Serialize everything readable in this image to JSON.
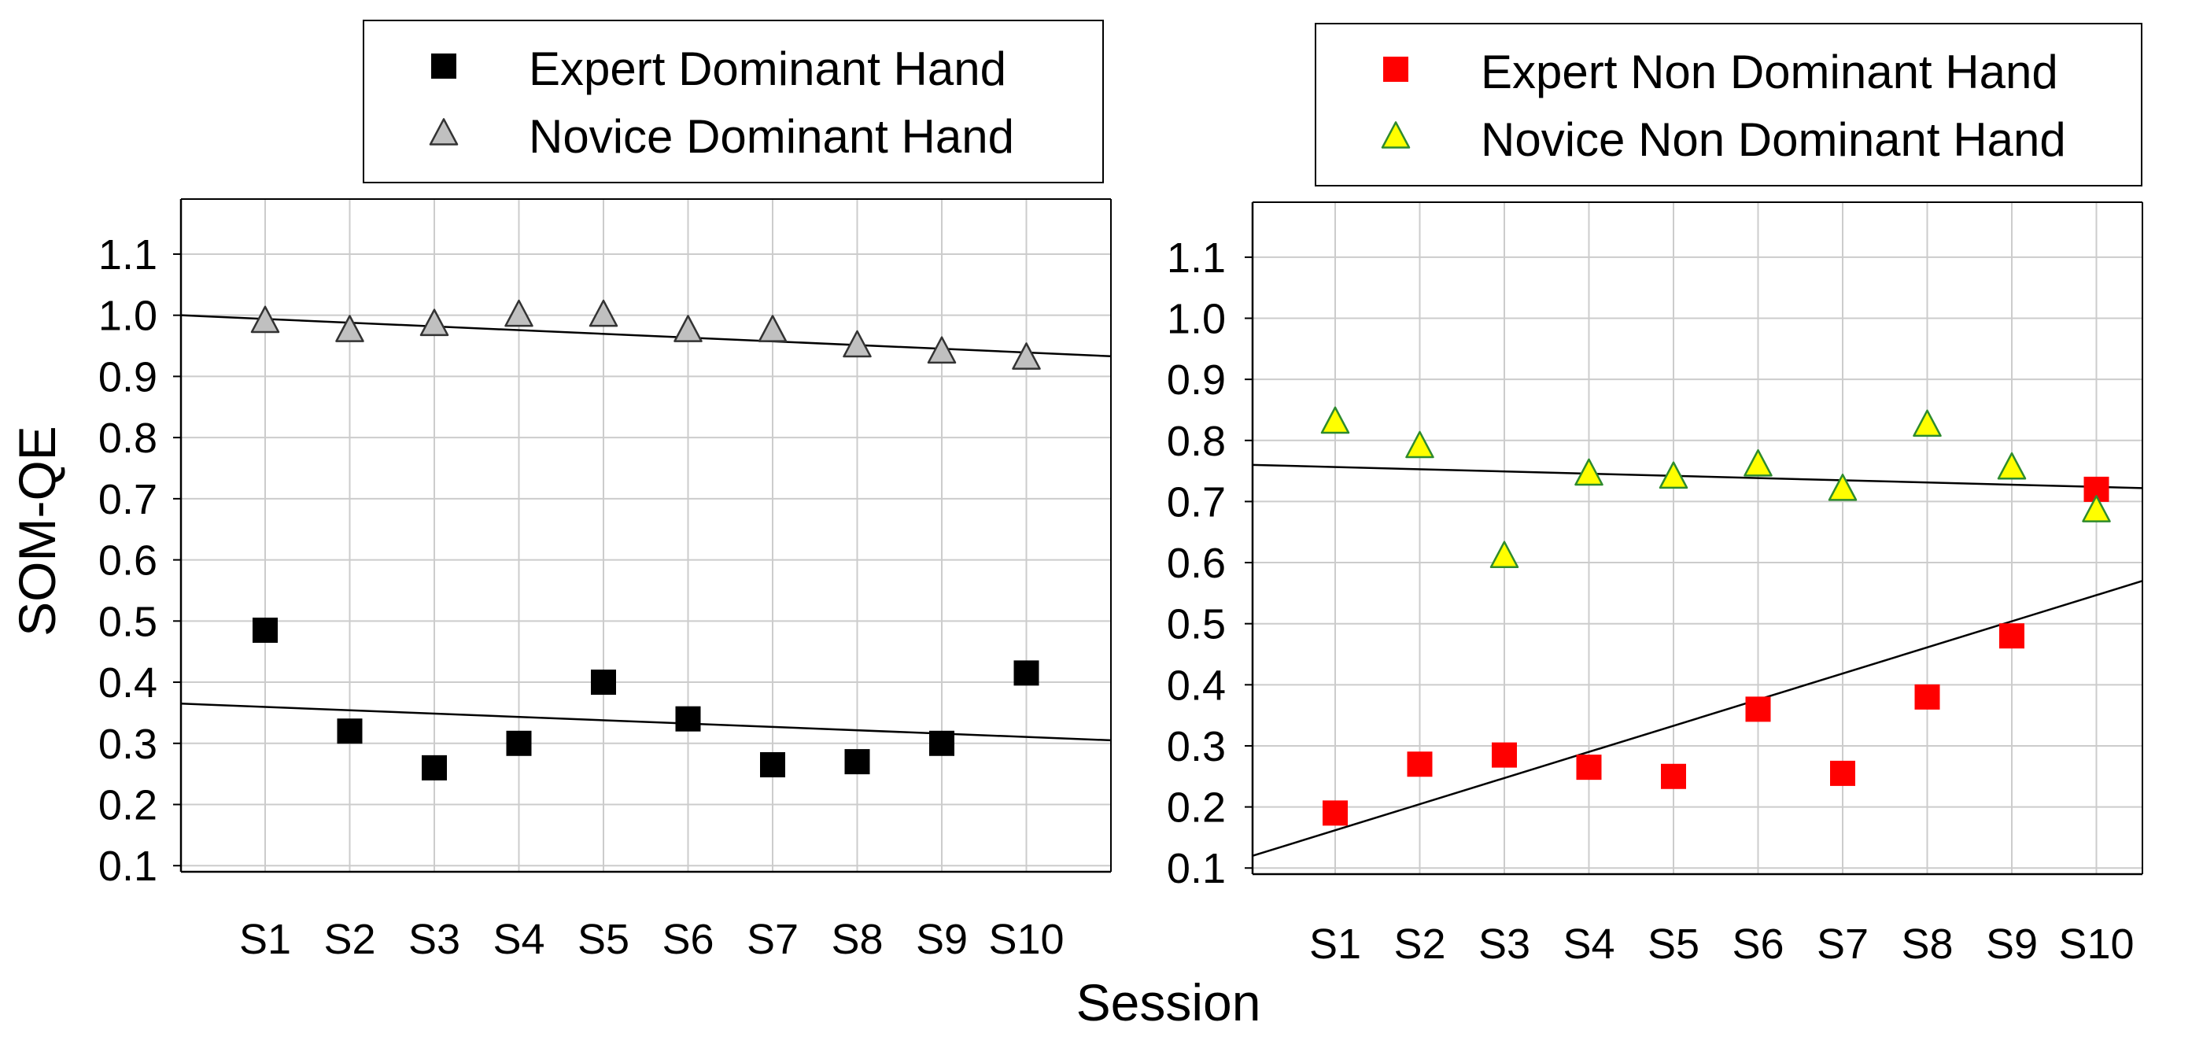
{
  "shared_axis_titles": {
    "y": "SOM-QE",
    "x": "Session"
  },
  "chart_data": [
    {
      "type": "scatter",
      "title": "",
      "xlabel": "Session",
      "ylabel": "SOM-QE",
      "categories": [
        "S1",
        "S2",
        "S3",
        "S4",
        "S5",
        "S6",
        "S7",
        "S8",
        "S9",
        "S10"
      ],
      "yticks": [
        "0.1",
        "0.2",
        "0.3",
        "0.4",
        "0.5",
        "0.6",
        "0.7",
        "0.8",
        "0.9",
        "1.0",
        "1.1"
      ],
      "ylim": [
        0.09,
        1.19
      ],
      "grid": true,
      "legend_position": "top",
      "series": [
        {
          "name": "Expert Dominant Hand",
          "marker": "square",
          "color": "#000000",
          "values": [
            0.485,
            0.32,
            0.26,
            0.3,
            0.4,
            0.34,
            0.265,
            0.27,
            0.3,
            0.415
          ],
          "trendline": {
            "start": 0.365,
            "end": 0.305
          }
        },
        {
          "name": "Novice Dominant Hand",
          "marker": "triangle",
          "color": "#c0c0c0",
          "values": [
            0.99,
            0.975,
            0.985,
            1.0,
            1.0,
            0.975,
            0.975,
            0.95,
            0.94,
            0.93
          ],
          "trendline": {
            "start": 1.0,
            "end": 0.933
          }
        }
      ]
    },
    {
      "type": "scatter",
      "title": "",
      "xlabel": "Session",
      "ylabel": "SOM-QE",
      "categories": [
        "S1",
        "S2",
        "S3",
        "S4",
        "S5",
        "S6",
        "S7",
        "S8",
        "S9",
        "S10"
      ],
      "yticks": [
        "0.1",
        "0.2",
        "0.3",
        "0.4",
        "0.5",
        "0.6",
        "0.7",
        "0.8",
        "0.9",
        "1.0",
        "1.1"
      ],
      "ylim": [
        0.09,
        1.19
      ],
      "grid": true,
      "legend_position": "top",
      "series": [
        {
          "name": "Expert Non Dominant Hand",
          "marker": "square",
          "color": "#ff0000",
          "values": [
            0.19,
            0.27,
            0.285,
            0.265,
            0.25,
            0.36,
            0.255,
            0.38,
            0.48,
            0.72
          ],
          "trendline": {
            "start": 0.12,
            "end": 0.57
          }
        },
        {
          "name": "Novice Non Dominant Hand",
          "marker": "triangle",
          "color": "#ffff00",
          "edge_color": "#2e8b2e",
          "values": [
            0.83,
            0.79,
            0.61,
            0.745,
            0.74,
            0.76,
            0.72,
            0.825,
            0.755,
            0.685
          ],
          "trendline": {
            "start": 0.76,
            "end": 0.722
          }
        }
      ]
    }
  ]
}
